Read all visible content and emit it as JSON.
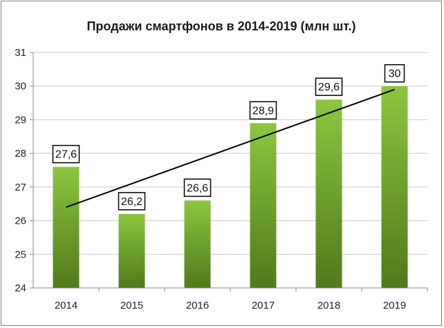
{
  "chart_data": {
    "type": "bar",
    "title": "Продажи смартфонов в 2014-2019 (млн шт.)",
    "xlabel": "",
    "ylabel": "",
    "categories": [
      "2014",
      "2015",
      "2016",
      "2017",
      "2018",
      "2019"
    ],
    "values": [
      27.6,
      26.2,
      26.6,
      28.9,
      29.6,
      30
    ],
    "value_labels": [
      "27,6",
      "26,2",
      "26,6",
      "28,9",
      "29,6",
      "30"
    ],
    "ylim": [
      24,
      31
    ],
    "yticks": [
      "24",
      "25",
      "26",
      "27",
      "28",
      "29",
      "30",
      "31"
    ],
    "grid": true,
    "legend": "none",
    "trendline": "linear",
    "colors": {
      "bar_top": "#8cc63f",
      "bar_bottom": "#4f7a1a",
      "grid": "#c8c8c8",
      "trend": "#000000"
    }
  }
}
